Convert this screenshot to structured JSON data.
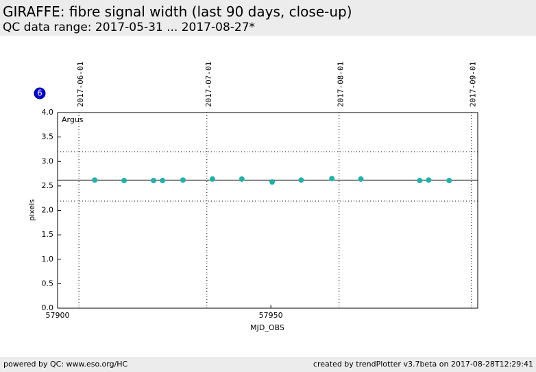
{
  "header": {
    "title": "GIRAFFE: fibre signal width (last 90 days, close-up)",
    "subtitle": "QC data range: 2017-05-31 ... 2017-08-27*"
  },
  "badge": "6",
  "chart_data": {
    "type": "scatter",
    "label": "Argus",
    "xlabel": "MJD_OBS",
    "ylabel": "pixels",
    "x": [
      57908.7,
      57915.6,
      57922.5,
      57924.6,
      57929.4,
      57936.3,
      57943.2,
      57950.3,
      57957.1,
      57964.3,
      57971.1,
      57984.9,
      57987.0,
      57991.8
    ],
    "values": [
      2.62,
      2.61,
      2.61,
      2.61,
      2.62,
      2.64,
      2.64,
      2.58,
      2.62,
      2.65,
      2.64,
      2.61,
      2.62,
      2.61
    ],
    "color": "#20b2aa",
    "xlim": [
      57900,
      57998.5
    ],
    "ylim": [
      0,
      4
    ],
    "xticks": [
      57900,
      57950
    ],
    "yticks": [
      {
        "value": 0,
        "label": "0.0"
      },
      {
        "value": 0.5,
        "label": "0.5"
      },
      {
        "value": 1,
        "label": "1.0"
      },
      {
        "value": 1.5,
        "label": "1.5"
      },
      {
        "value": 2,
        "label": "2.0"
      },
      {
        "value": 2.5,
        "label": "2.5"
      },
      {
        "value": 3,
        "label": "3.0"
      },
      {
        "value": 3.5,
        "label": "3.5"
      },
      {
        "value": 4,
        "label": "4.0"
      }
    ],
    "date_ticks": [
      {
        "value": 57905,
        "label": "2017-06-01"
      },
      {
        "value": 57935,
        "label": "2017-07-01"
      },
      {
        "value": 57966,
        "label": "2017-08-01"
      },
      {
        "value": 57997,
        "label": "2017-09-01"
      }
    ],
    "reference_lines": [
      {
        "value": 2.62,
        "style": "solid"
      },
      {
        "value": 3.2,
        "style": "dotted"
      },
      {
        "value": 2.19,
        "style": "dotted"
      }
    ]
  },
  "footer": {
    "left": "powered by QC: www.eso.org/HC",
    "right": "created by trendPlotter v3.7beta on 2017-08-28T12:29:41"
  }
}
